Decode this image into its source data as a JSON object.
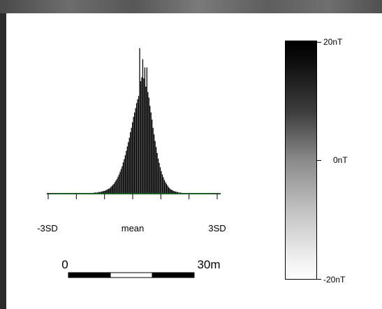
{
  "chart_data": [
    {
      "type": "bar",
      "x_ticks": [
        "-3SD",
        "mean",
        "3SD"
      ],
      "baseline_color": "#1e5c1e",
      "bar_color": "#000000",
      "values": [
        0,
        0,
        0,
        0,
        0,
        0,
        0,
        0,
        0,
        0,
        0,
        0,
        0,
        0,
        0,
        0,
        0,
        0,
        0,
        0,
        0,
        0,
        0,
        0,
        0,
        0,
        0,
        0,
        0,
        0,
        0,
        0,
        0,
        0,
        0,
        0,
        0,
        0,
        0,
        0,
        1,
        1,
        1,
        1,
        1,
        2,
        2,
        2,
        2,
        3,
        3,
        3,
        4,
        4,
        5,
        5,
        6,
        7,
        8,
        9,
        10,
        12,
        14,
        16,
        18,
        21,
        24,
        27,
        31,
        35,
        40,
        45,
        50,
        57,
        63,
        70,
        78,
        86,
        94,
        102,
        112,
        120,
        130,
        140,
        148,
        156,
        165,
        172,
        178,
        190,
        205,
        212,
        218,
        210,
        230,
        195,
        200,
        185,
        175,
        160,
        148,
        135,
        120,
        108,
        96,
        85,
        74,
        64,
        56,
        48,
        41,
        35,
        30,
        25,
        21,
        18,
        15,
        12,
        10,
        8,
        7,
        6,
        5,
        4,
        4,
        3,
        3,
        2,
        2,
        2,
        1,
        1,
        1,
        1,
        1,
        0,
        0,
        0,
        0,
        0,
        0,
        0,
        0,
        0,
        0,
        0,
        0,
        0,
        0,
        0,
        0,
        0,
        0,
        0,
        0,
        0,
        0,
        0,
        0,
        0,
        0,
        0,
        0,
        0,
        0,
        0,
        0,
        0
      ],
      "spikes": [
        {
          "index": 89,
          "value": 265
        },
        {
          "index": 92,
          "value": 245
        },
        {
          "index": 96,
          "value": 230
        }
      ]
    },
    {
      "type": "colorbar",
      "labels": {
        "top": "20nT",
        "middle": "0nT",
        "bottom": "-20nT"
      },
      "top_color": "#000000",
      "bottom_color": "#ffffff"
    }
  ],
  "scale_bar": {
    "start_label": "0",
    "end_label": "30m",
    "segment_colors": [
      "#000000",
      "#ffffff",
      "#000000"
    ]
  }
}
